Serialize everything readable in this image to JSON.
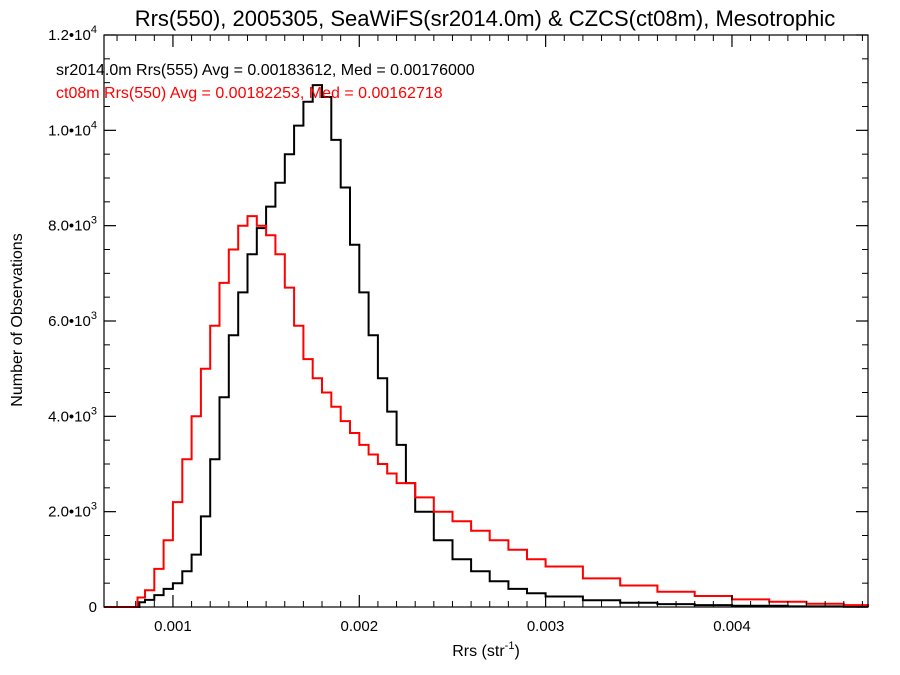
{
  "chart_data": {
    "type": "line",
    "title": "Rrs(550), 2005305, SeaWiFS(sr2014.0m) & CZCS(ct08m), Mesotrophic",
    "xlabel": "Rrs (str",
    "xlabel_sup": "-1",
    "xlabel_end": ")",
    "ylabel": "Number of Observations",
    "xlim": [
      0.00063,
      0.00473
    ],
    "ylim": [
      0,
      12000
    ],
    "grid": false,
    "x_ticks": [
      {
        "value": 0.001,
        "label": "0.001"
      },
      {
        "value": 0.002,
        "label": "0.002"
      },
      {
        "value": 0.003,
        "label": "0.003"
      },
      {
        "value": 0.004,
        "label": "0.004"
      }
    ],
    "y_ticks": [
      {
        "value": 0,
        "label": "0",
        "exp": ""
      },
      {
        "value": 2000,
        "label": "2.0•10",
        "exp": "3"
      },
      {
        "value": 4000,
        "label": "4.0•10",
        "exp": "3"
      },
      {
        "value": 6000,
        "label": "6.0•10",
        "exp": "3"
      },
      {
        "value": 8000,
        "label": "8.0•10",
        "exp": "3"
      },
      {
        "value": 10000,
        "label": "1.0•10",
        "exp": "4"
      },
      {
        "value": 12000,
        "label": "1.2•10",
        "exp": "4"
      }
    ],
    "series": [
      {
        "color": "#000000",
        "legend": "sr2014.0m Rrs(555) Avg = 0.00183612, Med = 0.00176000",
        "points": [
          [
            0.00063,
            0
          ],
          [
            0.0008,
            0
          ],
          [
            0.00082,
            100
          ],
          [
            0.00085,
            150
          ],
          [
            0.0009,
            250
          ],
          [
            0.00095,
            380
          ],
          [
            0.001,
            500
          ],
          [
            0.00105,
            750
          ],
          [
            0.0011,
            1100
          ],
          [
            0.00115,
            1900
          ],
          [
            0.0012,
            3100
          ],
          [
            0.00125,
            4400
          ],
          [
            0.0013,
            5700
          ],
          [
            0.00135,
            6600
          ],
          [
            0.0014,
            7400
          ],
          [
            0.00145,
            7950
          ],
          [
            0.0015,
            8400
          ],
          [
            0.00155,
            8900
          ],
          [
            0.0016,
            9500
          ],
          [
            0.00165,
            10100
          ],
          [
            0.0017,
            10600
          ],
          [
            0.00175,
            10950
          ],
          [
            0.0018,
            10700
          ],
          [
            0.00185,
            9800
          ],
          [
            0.0019,
            8800
          ],
          [
            0.00195,
            7600
          ],
          [
            0.002,
            6600
          ],
          [
            0.00205,
            5700
          ],
          [
            0.0021,
            4800
          ],
          [
            0.00215,
            4100
          ],
          [
            0.0022,
            3400
          ],
          [
            0.00225,
            2600
          ],
          [
            0.0023,
            2000
          ],
          [
            0.0024,
            1400
          ],
          [
            0.0025,
            1000
          ],
          [
            0.0026,
            750
          ],
          [
            0.0027,
            540
          ],
          [
            0.0028,
            380
          ],
          [
            0.0029,
            290
          ],
          [
            0.003,
            220
          ],
          [
            0.0032,
            140
          ],
          [
            0.0034,
            90
          ],
          [
            0.0036,
            60
          ],
          [
            0.0038,
            40
          ],
          [
            0.004,
            25
          ],
          [
            0.0043,
            12
          ],
          [
            0.0046,
            5
          ],
          [
            0.00473,
            3
          ]
        ]
      },
      {
        "color": "#ff0000",
        "legend": "ct08m Rrs(550) Avg = 0.00182253, Med = 0.00162718",
        "points": [
          [
            0.00063,
            0
          ],
          [
            0.0008,
            0
          ],
          [
            0.00081,
            200
          ],
          [
            0.00085,
            350
          ],
          [
            0.0009,
            800
          ],
          [
            0.00095,
            1400
          ],
          [
            0.001,
            2200
          ],
          [
            0.00105,
            3100
          ],
          [
            0.0011,
            4000
          ],
          [
            0.00115,
            5000
          ],
          [
            0.0012,
            5900
          ],
          [
            0.00125,
            6800
          ],
          [
            0.0013,
            7500
          ],
          [
            0.00135,
            8000
          ],
          [
            0.0014,
            8200
          ],
          [
            0.00145,
            8000
          ],
          [
            0.0015,
            7800
          ],
          [
            0.00155,
            7400
          ],
          [
            0.0016,
            6700
          ],
          [
            0.00165,
            5900
          ],
          [
            0.0017,
            5200
          ],
          [
            0.00175,
            4800
          ],
          [
            0.0018,
            4500
          ],
          [
            0.00185,
            4200
          ],
          [
            0.0019,
            3900
          ],
          [
            0.00195,
            3650
          ],
          [
            0.002,
            3400
          ],
          [
            0.00205,
            3200
          ],
          [
            0.0021,
            3000
          ],
          [
            0.00215,
            2800
          ],
          [
            0.0022,
            2600
          ],
          [
            0.0023,
            2300
          ],
          [
            0.0024,
            2000
          ],
          [
            0.0025,
            1800
          ],
          [
            0.0026,
            1600
          ],
          [
            0.0027,
            1400
          ],
          [
            0.0028,
            1200
          ],
          [
            0.0029,
            1000
          ],
          [
            0.003,
            850
          ],
          [
            0.0032,
            600
          ],
          [
            0.0034,
            450
          ],
          [
            0.0036,
            320
          ],
          [
            0.0038,
            230
          ],
          [
            0.004,
            160
          ],
          [
            0.0042,
            110
          ],
          [
            0.0044,
            70
          ],
          [
            0.0046,
            40
          ],
          [
            0.00473,
            30
          ]
        ]
      }
    ]
  }
}
